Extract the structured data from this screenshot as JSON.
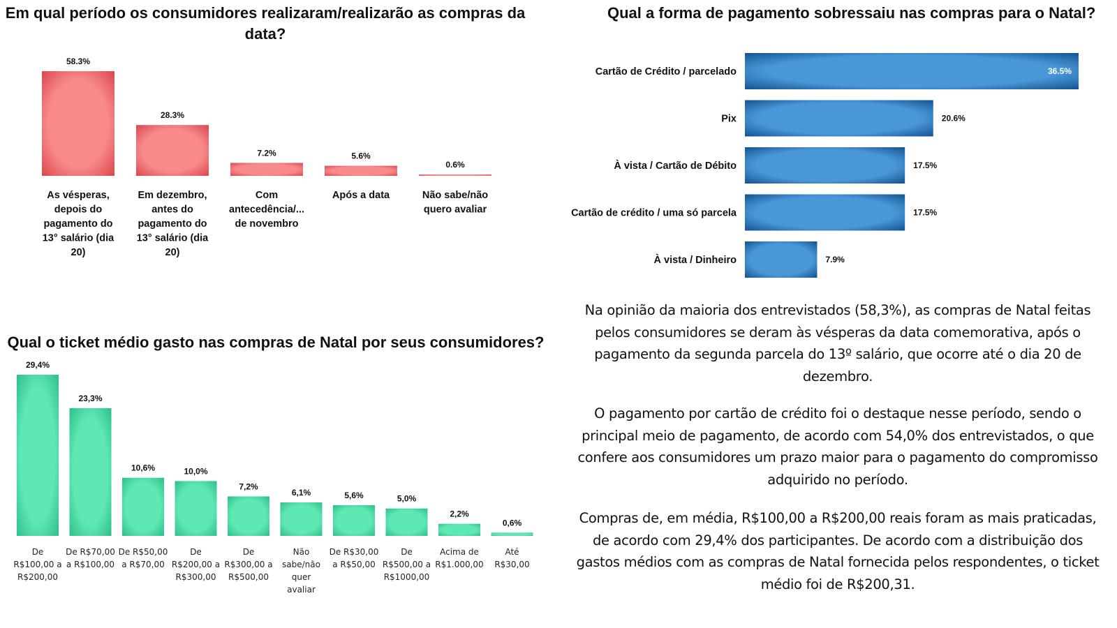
{
  "colors": {
    "chart1_bar": "#ec5a5e",
    "chart1_bar_light": "#f98a8b",
    "chart2_bar": "#3a8fd3",
    "chart2_bar_light": "#4a9ad8",
    "chart3_bar": "#3fd8a0",
    "chart3_bar_light": "#5ee8b4"
  },
  "chart_data": [
    {
      "type": "bar",
      "title": "Em qual período os consumidores realizaram/realizarão as compras da data?",
      "xlabel": "",
      "ylabel": "",
      "ylim": [
        0,
        58.3
      ],
      "grid": false,
      "categories": [
        "As vésperas, depois do pagamento do 13° salário (dia 20)",
        "Em dezembro, antes do pagamento do 13° salário (dia 20)",
        "Com antecedência/... de novembro",
        "Após a data",
        "Não sabe/não quero avaliar"
      ],
      "category_lines": [
        [
          "As vésperas,",
          "depois do",
          "pagamento do",
          "13° salário (dia",
          "20)"
        ],
        [
          "Em dezembro,",
          "antes do",
          "pagamento do",
          "13° salário (dia",
          "20)"
        ],
        [
          "Com",
          "antecedência/...",
          "de novembro"
        ],
        [
          "Após a data"
        ],
        [
          "Não sabe/não",
          "quero avaliar"
        ]
      ],
      "values": [
        58.3,
        28.3,
        7.2,
        5.6,
        0.6
      ],
      "labels": [
        "58.3%",
        "28.3%",
        "7.2%",
        "5.6%",
        "0.6%"
      ]
    },
    {
      "type": "bar",
      "orientation": "horizontal",
      "title": "Qual a forma de pagamento sobressaiu nas compras para o Natal?",
      "xlabel": "",
      "ylabel": "",
      "xlim": [
        0,
        36.5
      ],
      "grid": false,
      "categories": [
        "Cartão de Crédito / parcelado",
        "Pix",
        "À vista / Cartão de Débito",
        "Cartão de crédito / uma só parcela",
        "À vista / Dinheiro"
      ],
      "values": [
        36.5,
        20.6,
        17.5,
        17.5,
        7.9
      ],
      "labels": [
        "36.5%",
        "20.6%",
        "17.5%",
        "17.5%",
        "7.9%"
      ]
    },
    {
      "type": "bar",
      "title": "Qual o ticket médio gasto nas compras de Natal por seus consumidores?",
      "xlabel": "",
      "ylabel": "",
      "ylim": [
        0,
        29.4
      ],
      "grid": false,
      "categories": [
        "De R$100,00 a R$200,00",
        "De R$70,00 a R$100,00",
        "De R$50,00 a R$70,00",
        "De R$200,00 a R$300,00",
        "De R$300,00 a R$500,00",
        "Não sabe/não quer avaliar",
        "De R$30,00 a R$50,00",
        "De R$500,00 a R$1000,00",
        "Acima de R$1.000,00",
        "Até R$30,00"
      ],
      "category_lines": [
        [
          "De",
          "R$100,00 a",
          "R$200,00"
        ],
        [
          "De R$70,00",
          "a R$100,00"
        ],
        [
          "De R$50,00",
          "a R$70,00"
        ],
        [
          "De",
          "R$200,00 a",
          "R$300,00"
        ],
        [
          "De",
          "R$300,00 a",
          "R$500,00"
        ],
        [
          "Não",
          "sabe/não",
          "quer",
          "avaliar"
        ],
        [
          "De R$30,00",
          "a R$50,00"
        ],
        [
          "De",
          "R$500,00 a",
          "R$1000,00"
        ],
        [
          "Acima de",
          "R$1.000,00"
        ],
        [
          "Até",
          "R$30,00"
        ]
      ],
      "values": [
        29.4,
        23.3,
        10.6,
        10.0,
        7.2,
        6.1,
        5.6,
        5.0,
        2.2,
        0.6
      ],
      "labels": [
        "29,4%",
        "23,3%",
        "10,6%",
        "10,0%",
        "7,2%",
        "6,1%",
        "5,6%",
        "5,0%",
        "2,2%",
        "0,6%"
      ]
    }
  ],
  "text": {
    "paragraph_1": "Na opinião da maioria dos entrevistados (58,3%), as compras de Natal feitas pelos consumidores se deram às vésperas da data comemorativa, após o pagamento da segunda parcela do 13º salário, que ocorre até o dia 20 de dezembro.",
    "paragraph_2": "O pagamento por cartão de crédito foi o destaque nesse período, sendo o principal meio de pagamento, de acordo com 54,0% dos entrevistados, o que confere aos consumidores um prazo maior para o pagamento do compromisso adquirido no período.",
    "paragraph_3": "Compras de, em média, R$100,00 a R$200,00 reais foram as mais praticadas, de acordo com 29,4% dos participantes. De acordo com a distribuição dos gastos médios com as compras de Natal fornecida pelos respondentes, o ticket médio foi de R$200,31."
  }
}
